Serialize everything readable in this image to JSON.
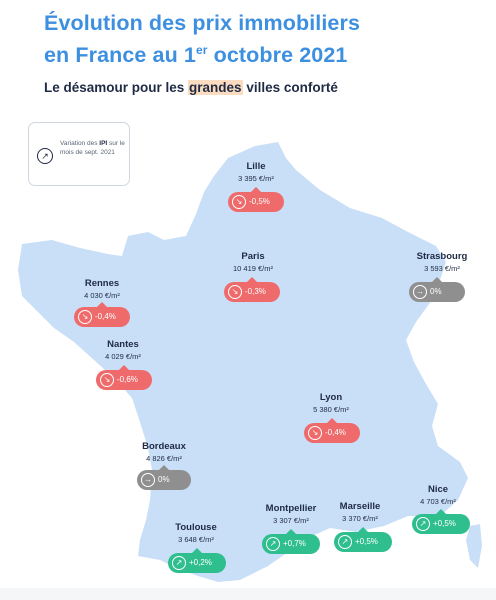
{
  "title": {
    "line1": "Évolution des prix immobiliers",
    "line2_pre": "en France au 1",
    "line2_sup": "er",
    "line2_post": " octobre 2021"
  },
  "subtitle": {
    "pre": "Le désamour pour les ",
    "highlight": "grandes",
    "post": " villes conforté"
  },
  "legend": {
    "line_pre": "Variation des ",
    "line_bold": "IPI",
    "line_post": " sur le mois de sept. 2021",
    "icon": "arrow-up-right-circle-icon"
  },
  "colors": {
    "title": "#3d8fe0",
    "map": "#c9dff8",
    "decrease": "#ef6b6b",
    "stable": "#8f8f8f",
    "increase": "#2fbf8e"
  },
  "cities": [
    {
      "name": "Lille",
      "price": "3 395 €/m²",
      "variation": "-0,5%",
      "trend": "down"
    },
    {
      "name": "Paris",
      "price": "10 419 €/m²",
      "variation": "-0,3%",
      "trend": "down"
    },
    {
      "name": "Strasbourg",
      "price": "3 593 €/m²",
      "variation": "0%",
      "trend": "stable"
    },
    {
      "name": "Rennes",
      "price": "4 030 €/m²",
      "variation": "-0,4%",
      "trend": "down"
    },
    {
      "name": "Nantes",
      "price": "4 029 €/m²",
      "variation": "-0,6%",
      "trend": "down"
    },
    {
      "name": "Lyon",
      "price": "5 380 €/m²",
      "variation": "-0,4%",
      "trend": "down"
    },
    {
      "name": "Bordeaux",
      "price": "4 826 €/m²",
      "variation": "0%",
      "trend": "stable"
    },
    {
      "name": "Nice",
      "price": "4 703 €/m²",
      "variation": "+0,5%",
      "trend": "up"
    },
    {
      "name": "Montpellier",
      "price": "3 307 €/m²",
      "variation": "+0,7%",
      "trend": "up"
    },
    {
      "name": "Marseille",
      "price": "3 370 €/m²",
      "variation": "+0,5%",
      "trend": "up"
    },
    {
      "name": "Toulouse",
      "price": "3 648 €/m²",
      "variation": "+0,2%",
      "trend": "up"
    }
  ]
}
